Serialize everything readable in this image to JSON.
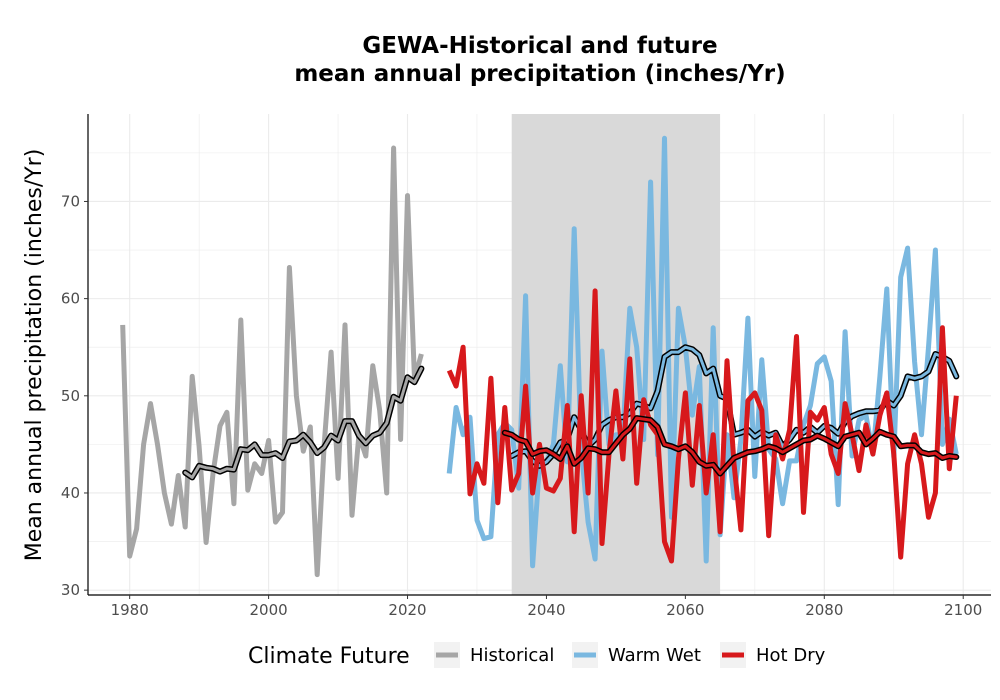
{
  "chart_data": {
    "type": "line",
    "title_line1": "GEWA-Historical and future",
    "title_line2": "mean annual precipitation (inches/Yr)",
    "xlabel": "",
    "ylabel": "Mean annual precipitation (inches/Yr)",
    "xlim": [
      1974,
      2104
    ],
    "ylim": [
      29.5,
      79
    ],
    "xticks": [
      1980,
      2000,
      2020,
      2040,
      2060,
      2080,
      2100
    ],
    "yticks": [
      30,
      40,
      50,
      60,
      70
    ],
    "grid": true,
    "shaded_period": [
      2035,
      2065
    ],
    "legend": {
      "title": "Climate Future",
      "position": "bottom",
      "entries": [
        "Historical",
        "Warm Wet",
        "Hot Dry"
      ]
    },
    "series": [
      {
        "name": "Historical",
        "color": "#a6a6a6",
        "x": [
          1979,
          1980,
          1981,
          1982,
          1983,
          1984,
          1985,
          1986,
          1987,
          1988,
          1989,
          1990,
          1991,
          1992,
          1993,
          1994,
          1995,
          1996,
          1997,
          1998,
          1999,
          2000,
          2001,
          2002,
          2003,
          2004,
          2005,
          2006,
          2007,
          2008,
          2009,
          2010,
          2011,
          2012,
          2013,
          2014,
          2015,
          2016,
          2017,
          2018,
          2019,
          2020,
          2021,
          2022
        ],
        "values": [
          57.3,
          33.5,
          36.3,
          45.0,
          49.2,
          45.0,
          40.0,
          36.8,
          41.8,
          36.5,
          52.0,
          44.8,
          34.9,
          42.0,
          46.9,
          48.3,
          38.9,
          57.8,
          40.3,
          43.0,
          42.0,
          45.4,
          37.0,
          38.0,
          63.2,
          50.0,
          44.3,
          46.8,
          31.6,
          45.0,
          54.5,
          41.5,
          57.3,
          37.7,
          46.0,
          43.8,
          53.1,
          48.5,
          40.0,
          75.5,
          45.5,
          70.6,
          51.7,
          54.3
        ]
      },
      {
        "name": "Historical smoothed",
        "color": "#000000",
        "x": [
          1988,
          1989,
          1990,
          1991,
          1992,
          1993,
          1994,
          1995,
          1996,
          1997,
          1998,
          1999,
          2000,
          2001,
          2002,
          2003,
          2004,
          2005,
          2006,
          2007,
          2008,
          2009,
          2010,
          2011,
          2012,
          2013,
          2014,
          2015,
          2016,
          2017,
          2018,
          2019,
          2020,
          2021,
          2022
        ],
        "values": [
          42.1,
          41.6,
          42.8,
          42.6,
          42.5,
          42.2,
          42.5,
          42.4,
          44.5,
          44.4,
          45.0,
          43.9,
          43.9,
          44.1,
          43.6,
          45.3,
          45.4,
          46.0,
          45.2,
          44.1,
          44.7,
          45.9,
          45.4,
          47.4,
          47.4,
          45.9,
          45.1,
          45.9,
          46.2,
          47.2,
          49.9,
          49.5,
          51.9,
          51.4,
          52.8
        ]
      },
      {
        "name": "Warm Wet",
        "color": "#7ab8e0",
        "x": [
          2026,
          2027,
          2028,
          2029,
          2030,
          2031,
          2032,
          2033,
          2034,
          2035,
          2036,
          2037,
          2038,
          2039,
          2040,
          2041,
          2042,
          2043,
          2044,
          2045,
          2046,
          2047,
          2048,
          2049,
          2050,
          2051,
          2052,
          2053,
          2054,
          2055,
          2056,
          2057,
          2058,
          2059,
          2060,
          2061,
          2062,
          2063,
          2064,
          2065,
          2066,
          2067,
          2068,
          2069,
          2070,
          2071,
          2072,
          2073,
          2074,
          2075,
          2076,
          2077,
          2078,
          2079,
          2080,
          2081,
          2082,
          2083,
          2084,
          2085,
          2086,
          2087,
          2088,
          2089,
          2090,
          2091,
          2092,
          2093,
          2094,
          2095,
          2096,
          2097,
          2098,
          2099
        ],
        "values": [
          42.0,
          48.8,
          46.0,
          47.8,
          37.2,
          35.3,
          35.5,
          46.0,
          47.2,
          46.5,
          40.5,
          60.3,
          32.5,
          43.0,
          43.2,
          45.0,
          53.1,
          43.2,
          67.2,
          44.5,
          37.0,
          33.2,
          54.6,
          45.0,
          46.0,
          46.0,
          59.0,
          55.0,
          45.5,
          72.0,
          43.9,
          76.5,
          37.5,
          59.0,
          55.0,
          48.0,
          53.0,
          33.0,
          57.0,
          35.7,
          46.0,
          39.5,
          45.5,
          58.0,
          41.7,
          53.7,
          44.5,
          43.5,
          38.9,
          43.3,
          43.3,
          47.0,
          49.0,
          53.3,
          54.0,
          51.5,
          38.8,
          56.6,
          43.8,
          47.5,
          48.0,
          44.0,
          52.0,
          61.0,
          43.7,
          62.2,
          65.2,
          53.5,
          46.0,
          55.0,
          65.0,
          45.0,
          47.6,
          44.0
        ]
      },
      {
        "name": "Warm Wet smoothed",
        "color": "#000000",
        "x": [
          2035,
          2036,
          2037,
          2038,
          2039,
          2040,
          2041,
          2042,
          2043,
          2044,
          2045,
          2046,
          2047,
          2048,
          2049,
          2050,
          2051,
          2052,
          2053,
          2054,
          2055,
          2056,
          2057,
          2058,
          2059,
          2060,
          2061,
          2062,
          2063,
          2064,
          2065,
          2066,
          2067,
          2068,
          2069,
          2070,
          2071,
          2072,
          2073,
          2074,
          2075,
          2076,
          2077,
          2078,
          2079,
          2080,
          2081,
          2082,
          2083,
          2084,
          2085,
          2086,
          2087,
          2088,
          2089,
          2090,
          2091,
          2092,
          2093,
          2094,
          2095,
          2096,
          2097,
          2098,
          2099
        ],
        "values": [
          43.8,
          44.2,
          44.3,
          43.3,
          42.8,
          43.2,
          44.0,
          45.2,
          45.5,
          47.8,
          46.5,
          44.8,
          45.5,
          47.0,
          47.5,
          47.8,
          47.8,
          48.2,
          49.2,
          49.0,
          48.7,
          50.5,
          54.0,
          54.5,
          54.5,
          55.0,
          54.8,
          54.2,
          52.3,
          52.8,
          50.0,
          49.7,
          46.0,
          46.2,
          46.5,
          45.8,
          46.3,
          45.9,
          46.2,
          44.8,
          45.5,
          46.5,
          46.2,
          46.8,
          46.2,
          46.9,
          46.7,
          46.1,
          47.3,
          47.9,
          48.2,
          48.4,
          48.4,
          48.5,
          49.5,
          49.0,
          50.0,
          52.0,
          51.8,
          52.0,
          52.5,
          54.3,
          54.0,
          53.6,
          52.0
        ]
      },
      {
        "name": "Hot Dry",
        "color": "#d7191c",
        "x": [
          2026,
          2027,
          2028,
          2029,
          2030,
          2031,
          2032,
          2033,
          2034,
          2035,
          2036,
          2037,
          2038,
          2039,
          2040,
          2041,
          2042,
          2043,
          2044,
          2045,
          2046,
          2047,
          2048,
          2049,
          2050,
          2051,
          2052,
          2053,
          2054,
          2055,
          2056,
          2057,
          2058,
          2059,
          2060,
          2061,
          2062,
          2063,
          2064,
          2065,
          2066,
          2067,
          2068,
          2069,
          2070,
          2071,
          2072,
          2073,
          2074,
          2075,
          2076,
          2077,
          2078,
          2079,
          2080,
          2081,
          2082,
          2083,
          2084,
          2085,
          2086,
          2087,
          2088,
          2089,
          2090,
          2091,
          2092,
          2093,
          2094,
          2095,
          2096,
          2097,
          2098,
          2099
        ],
        "values": [
          52.6,
          51.0,
          55.0,
          39.9,
          43.0,
          41.0,
          51.8,
          39.0,
          48.8,
          40.3,
          42.0,
          51.0,
          40.0,
          45.0,
          40.5,
          40.2,
          41.5,
          49.0,
          36.0,
          50.0,
          40.0,
          60.8,
          34.8,
          44.0,
          50.5,
          43.5,
          53.8,
          41.0,
          49.6,
          47.0,
          46.0,
          35.0,
          33.0,
          43.5,
          50.3,
          40.8,
          49.0,
          40.0,
          46.0,
          36.0,
          53.6,
          43.0,
          36.2,
          49.5,
          50.3,
          48.5,
          35.6,
          46.0,
          43.5,
          46.5,
          56.1,
          38.0,
          48.3,
          47.5,
          48.8,
          44.0,
          42.0,
          49.2,
          46.0,
          42.3,
          47.0,
          44.0,
          48.0,
          50.3,
          44.0,
          33.4,
          43.0,
          46.0,
          43.0,
          37.5,
          40.0,
          57.0,
          42.5,
          50.0
        ]
      },
      {
        "name": "Hot Dry smoothed",
        "color": "#000000",
        "x": [
          2034,
          2035,
          2036,
          2037,
          2038,
          2039,
          2040,
          2041,
          2042,
          2043,
          2044,
          2045,
          2046,
          2047,
          2048,
          2049,
          2050,
          2051,
          2052,
          2053,
          2054,
          2055,
          2056,
          2057,
          2058,
          2059,
          2060,
          2061,
          2062,
          2063,
          2064,
          2065,
          2066,
          2067,
          2068,
          2069,
          2070,
          2071,
          2072,
          2073,
          2074,
          2075,
          2076,
          2077,
          2078,
          2079,
          2080,
          2081,
          2082,
          2083,
          2084,
          2085,
          2086,
          2087,
          2088,
          2089,
          2090,
          2091,
          2092,
          2093,
          2094,
          2095,
          2096,
          2097,
          2098,
          2099
        ],
        "values": [
          46.2,
          46.0,
          45.5,
          45.3,
          44.0,
          44.3,
          44.4,
          44.0,
          43.5,
          44.8,
          43.0,
          43.6,
          44.6,
          44.5,
          44.2,
          44.2,
          45.1,
          46.0,
          46.6,
          47.7,
          47.6,
          47.5,
          46.8,
          45.0,
          44.8,
          44.5,
          44.8,
          44.2,
          43.2,
          42.8,
          42.9,
          42.0,
          42.8,
          43.6,
          43.9,
          44.2,
          44.3,
          44.5,
          44.8,
          44.6,
          44.2,
          44.6,
          45.0,
          45.4,
          45.5,
          45.9,
          45.6,
          45.2,
          44.8,
          45.8,
          46.0,
          46.2,
          45.0,
          45.6,
          46.3,
          46.0,
          45.8,
          44.8,
          44.9,
          44.9,
          44.2,
          44.0,
          44.1,
          43.6,
          43.8,
          43.7
        ]
      }
    ]
  }
}
